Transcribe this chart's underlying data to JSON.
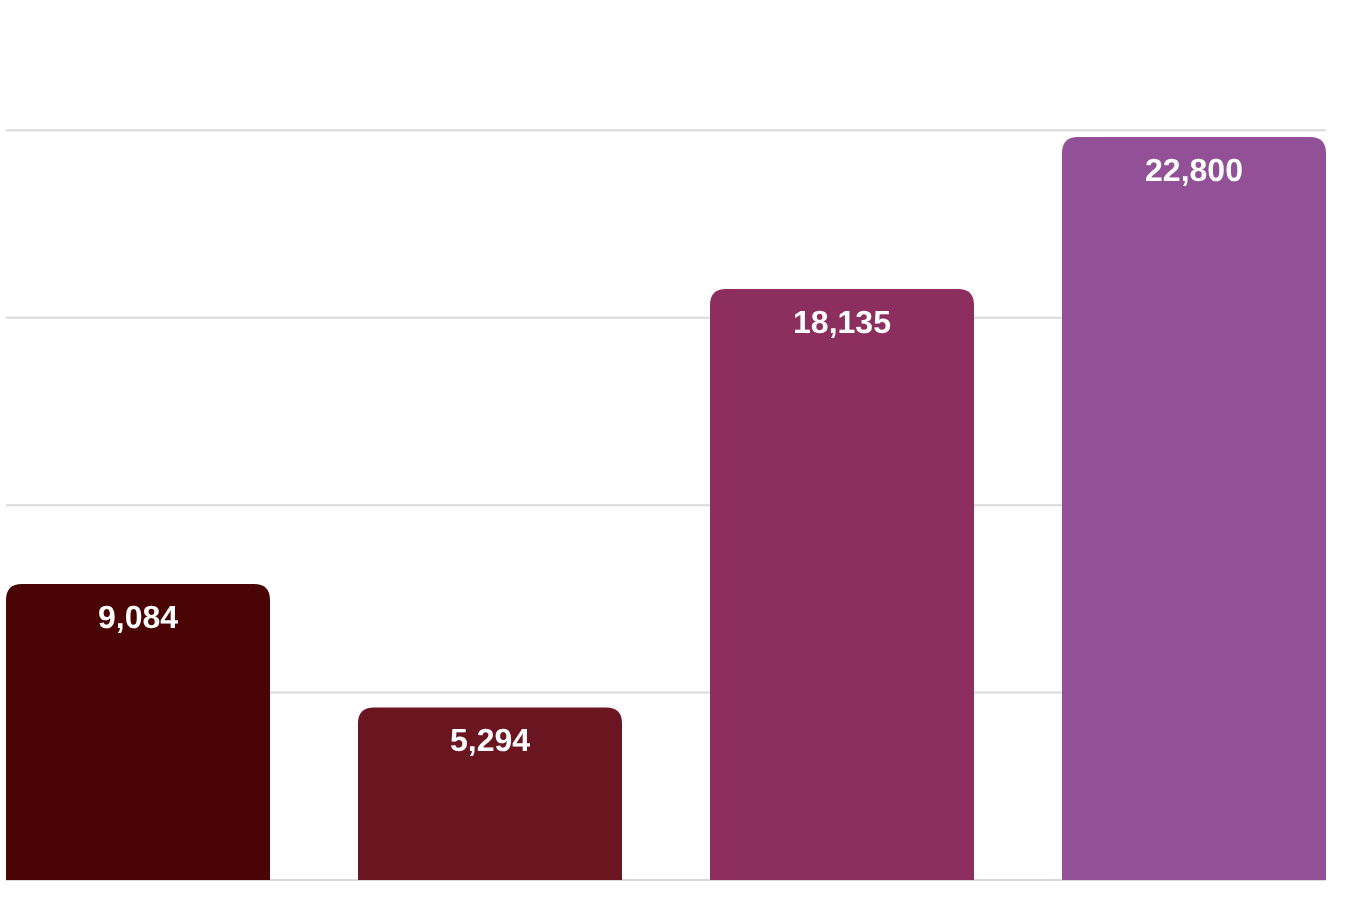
{
  "chart_data": {
    "type": "bar",
    "categories": [
      null,
      null,
      null,
      null
    ],
    "values": [
      9084,
      5294,
      18135,
      22800
    ],
    "colors": [
      "#4a0404",
      "#6b1520",
      "#8c2f5e",
      "#925096"
    ],
    "data_labels": true,
    "value_labels": [
      "9,084",
      "5,294",
      "18,135",
      "22,800"
    ],
    "ylim": [
      0,
      27000
    ],
    "yticks": [
      {
        "value": 0,
        "label": null
      },
      {
        "value": 5750,
        "label": null
      },
      {
        "value": 11500,
        "label": null
      },
      {
        "value": 17250,
        "label": null
      },
      {
        "value": 23000,
        "label": null
      }
    ],
    "grid": "y"
  }
}
